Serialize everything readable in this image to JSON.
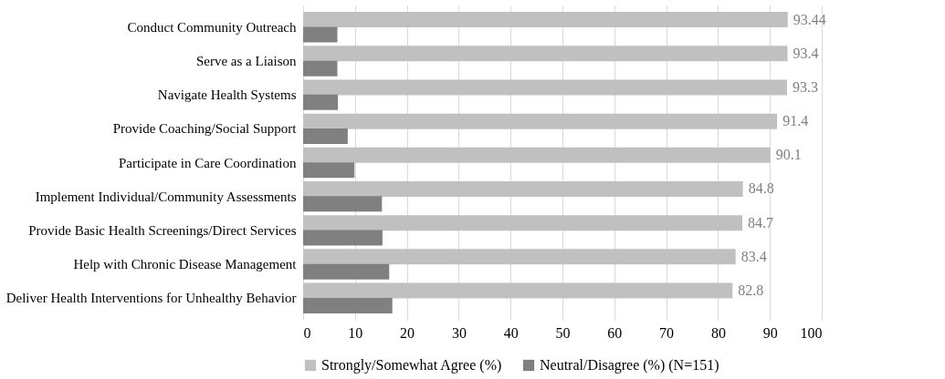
{
  "chart_data": {
    "type": "bar",
    "orientation": "horizontal",
    "categories": [
      "Conduct Community Outreach",
      "Serve as a Liaison",
      "Navigate Health Systems ",
      "Provide Coaching/Social Support ",
      "Participate in Care Coordination",
      "Implement Individual/Community Assessments ",
      "Provide Basic Health Screenings/Direct Services",
      "Help with Chronic Disease Management",
      "Deliver Health Interventions for Unhealthy Behavior "
    ],
    "series": [
      {
        "name": "Strongly/Somewhat Agree (%)",
        "color": "#c0c0c0",
        "values": [
          93.44,
          93.4,
          93.3,
          91.4,
          90.1,
          84.8,
          84.7,
          83.4,
          82.8
        ],
        "value_labels": [
          "93.44",
          "93.4",
          "93.3",
          "91.4",
          "90.1",
          "84.8",
          "84.7",
          "83.4",
          "82.8"
        ]
      },
      {
        "name": "Neutral/Disagree (%) (N=151)",
        "color": "#808080",
        "values": [
          6.6,
          6.6,
          6.7,
          8.6,
          9.9,
          15.2,
          15.3,
          16.6,
          17.2
        ]
      }
    ],
    "xlim": [
      0,
      100
    ],
    "xticks": [
      0,
      10,
      20,
      30,
      40,
      50,
      60,
      70,
      80,
      90,
      100
    ],
    "grid": "x",
    "legend": "bottom"
  }
}
